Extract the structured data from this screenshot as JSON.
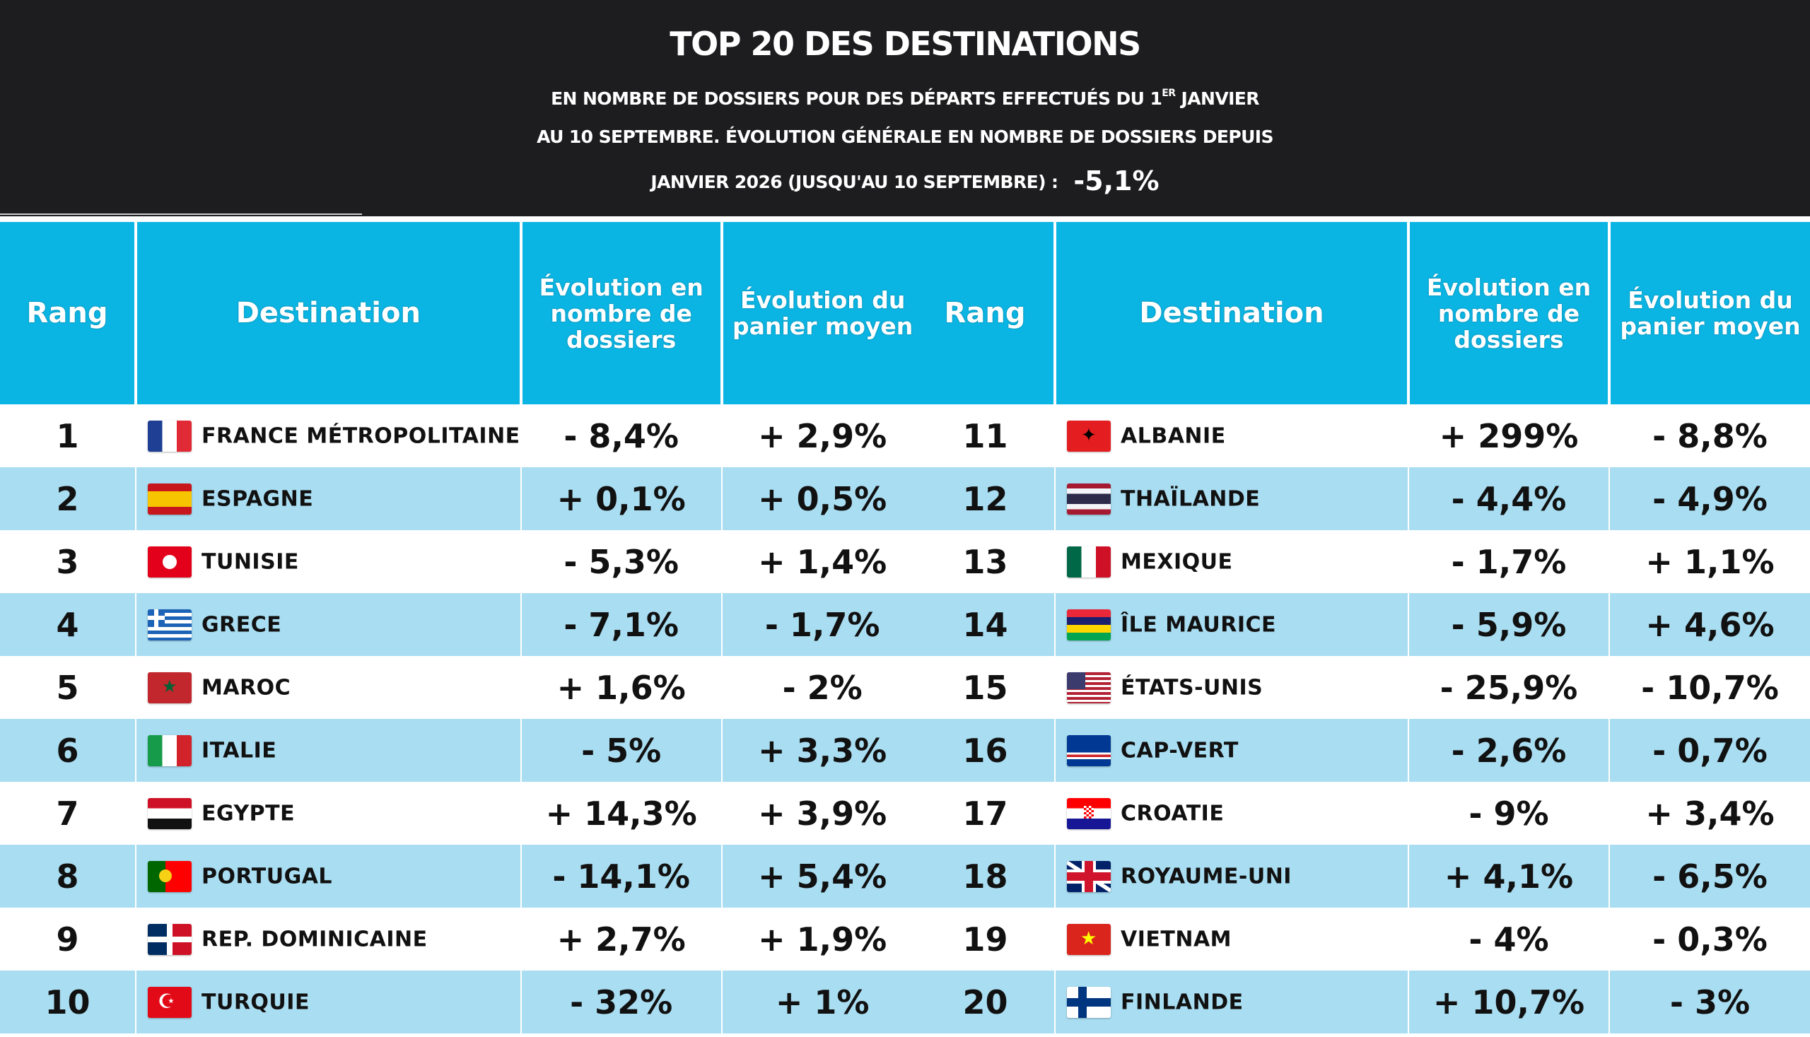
{
  "header": {
    "title": "TOP 20 DES DESTINATIONS",
    "line1_a": "EN NOMBRE DE DOSSIERS POUR DES DÉPARTS EFFECTUÉS  DU 1",
    "line1_sup": "ER",
    "line1_b": " JANVIER",
    "line2": "AU 10 SEPTEMBRE. ÉVOLUTION GÉNÉRALE EN NOMBRE  DE DOSSIERS DEPUIS",
    "line3": "JANVIER 2026 (JUSQU'AU 10 SEPTEMBRE) :",
    "total": "-5,1%"
  },
  "columns": {
    "rank": "Rang",
    "destination": "Destination",
    "dossiers": "Évolution en nombre de dossiers",
    "panier": "Évolution du panier moyen"
  },
  "rows": [
    {
      "rank": "1",
      "flag": "france-flag-icon",
      "destination": "FRANCE MÉTROPOLITAINE",
      "dossiers": "- 8,4%",
      "panier": "+ 2,9%"
    },
    {
      "rank": "2",
      "flag": "spain-flag-icon",
      "destination": "ESPAGNE",
      "dossiers": "+ 0,1%",
      "panier": "+ 0,5%"
    },
    {
      "rank": "3",
      "flag": "tunisia-flag-icon",
      "destination": "TUNISIE",
      "dossiers": "- 5,3%",
      "panier": "+ 1,4%"
    },
    {
      "rank": "4",
      "flag": "greece-flag-icon",
      "destination": "GRECE",
      "dossiers": "- 7,1%",
      "panier": "- 1,7%"
    },
    {
      "rank": "5",
      "flag": "morocco-flag-icon",
      "destination": "MAROC",
      "dossiers": "+ 1,6%",
      "panier": "- 2%"
    },
    {
      "rank": "6",
      "flag": "italy-flag-icon",
      "destination": "ITALIE",
      "dossiers": "- 5%",
      "panier": "+ 3,3%"
    },
    {
      "rank": "7",
      "flag": "egypt-flag-icon",
      "destination": "EGYPTE",
      "dossiers": "+ 14,3%",
      "panier": "+ 3,9%"
    },
    {
      "rank": "8",
      "flag": "portugal-flag-icon",
      "destination": "PORTUGAL",
      "dossiers": "- 14,1%",
      "panier": "+ 5,4%"
    },
    {
      "rank": "9",
      "flag": "dominican-republic-flag-icon",
      "destination": "REP. DOMINICAINE",
      "dossiers": "+ 2,7%",
      "panier": "+ 1,9%"
    },
    {
      "rank": "10",
      "flag": "turkey-flag-icon",
      "destination": "TURQUIE",
      "dossiers": "- 32%",
      "panier": "+ 1%"
    },
    {
      "rank": "11",
      "flag": "albania-flag-icon",
      "destination": "ALBANIE",
      "dossiers": "+ 299%",
      "panier": "- 8,8%"
    },
    {
      "rank": "12",
      "flag": "thailand-flag-icon",
      "destination": "THAÏLANDE",
      "dossiers": "- 4,4%",
      "panier": "- 4,9%"
    },
    {
      "rank": "13",
      "flag": "mexico-flag-icon",
      "destination": "MEXIQUE",
      "dossiers": "- 1,7%",
      "panier": "+ 1,1%"
    },
    {
      "rank": "14",
      "flag": "mauritius-flag-icon",
      "destination": "ÎLE MAURICE",
      "dossiers": "- 5,9%",
      "panier": "+ 4,6%"
    },
    {
      "rank": "15",
      "flag": "usa-flag-icon",
      "destination": "ÉTATS-UNIS",
      "dossiers": "- 25,9%",
      "panier": "- 10,7%"
    },
    {
      "rank": "16",
      "flag": "cape-verde-flag-icon",
      "destination": "CAP-VERT",
      "dossiers": "- 2,6%",
      "panier": "- 0,7%"
    },
    {
      "rank": "17",
      "flag": "croatia-flag-icon",
      "destination": "CROATIE",
      "dossiers": "- 9%",
      "panier": "+ 3,4%"
    },
    {
      "rank": "18",
      "flag": "uk-flag-icon",
      "destination": "ROYAUME-UNI",
      "dossiers": "+ 4,1%",
      "panier": "- 6,5%"
    },
    {
      "rank": "19",
      "flag": "vietnam-flag-icon",
      "destination": "VIETNAM",
      "dossiers": "- 4%",
      "panier": "- 0,3%"
    },
    {
      "rank": "20",
      "flag": "finland-flag-icon",
      "destination": "FINLANDE",
      "dossiers": "+ 10,7%",
      "panier": "- 3%"
    }
  ],
  "colors": {
    "header_bg": "#1d1c1e",
    "column_header_bg": "#0bb5e3",
    "stripe": "#a9ddf1"
  }
}
